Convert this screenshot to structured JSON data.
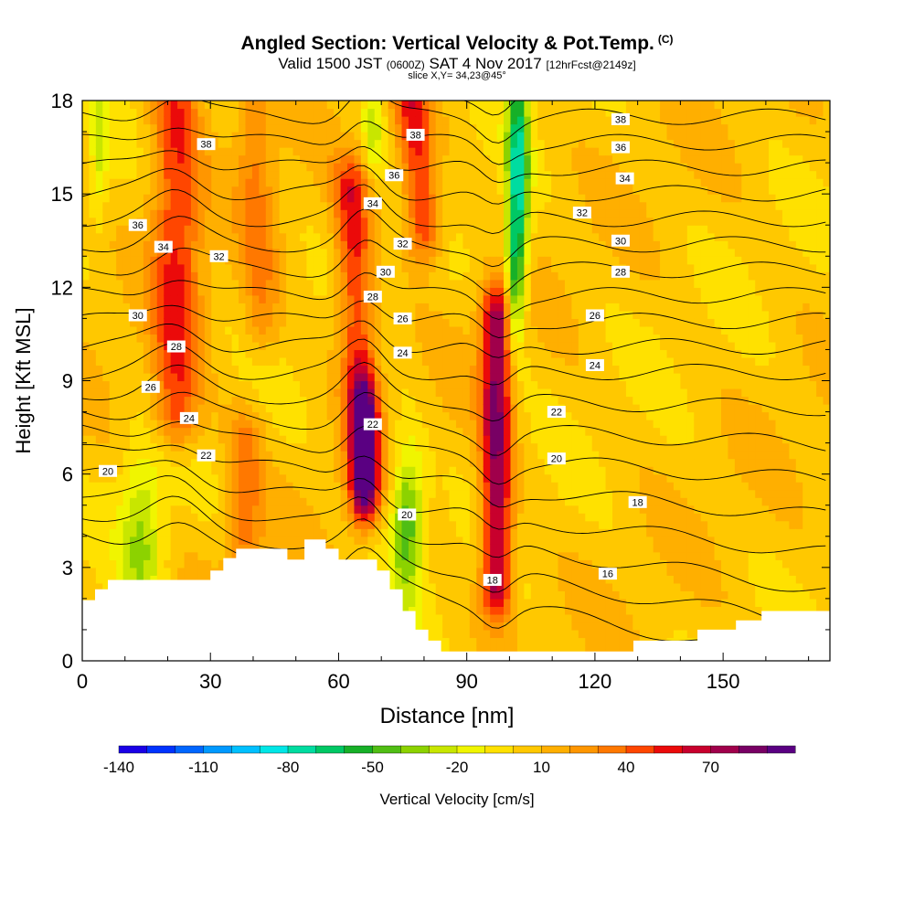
{
  "header": {
    "title": "Angled Section: Vertical Velocity & Pot.Temp.",
    "title_mark": "(C)",
    "valid_prefix": "Valid 1500 JST",
    "valid_utc": "(0600Z)",
    "valid_date": "SAT 4 Nov 2017",
    "forecast": "[12hrFcst@2149z]",
    "slice": "slice X,Y= 34,23@45°"
  },
  "chart_data": {
    "type": "heatmap",
    "title": "Angled Section: Vertical Velocity & Pot.Temp.",
    "xlabel": "Distance [nm]",
    "ylabel": "Height [Kft MSL]",
    "xlim": [
      0,
      175
    ],
    "ylim": [
      0,
      18
    ],
    "x_ticks": [
      0,
      30,
      60,
      90,
      120,
      150
    ],
    "y_ticks": [
      0,
      3,
      6,
      9,
      12,
      15,
      18
    ],
    "grid": false,
    "colorbar": {
      "label": "Vertical Velocity [cm/s]",
      "placement": "bottom",
      "levels": [
        -140,
        -130,
        -120,
        -110,
        -100,
        -90,
        -80,
        -70,
        -60,
        -50,
        -40,
        -30,
        -20,
        -10,
        0,
        10,
        20,
        30,
        40,
        50,
        60,
        70,
        80,
        90
      ],
      "tick_labels": [
        "-140",
        "-110",
        "-80",
        "-50",
        "-20",
        "10",
        "40",
        "70"
      ],
      "colors": [
        "#1a00e6",
        "#0033ff",
        "#0066ff",
        "#0099ff",
        "#00c0ff",
        "#00e6e6",
        "#00dca0",
        "#00c864",
        "#17b028",
        "#50be14",
        "#8cd200",
        "#c8e600",
        "#f0f500",
        "#ffe100",
        "#ffc800",
        "#ffaf00",
        "#ff9600",
        "#ff7800",
        "#ff4600",
        "#eb0a0a",
        "#c8002d",
        "#a0004b",
        "#780064",
        "#5a0082"
      ]
    },
    "background_velocity": 5,
    "updraft_plumes": [
      {
        "x_base": 22,
        "x_top": 22,
        "y_base": 8,
        "y_top": 18,
        "width": 4,
        "peak": 45
      },
      {
        "x_base": 66,
        "x_top": 63,
        "y_base": 6,
        "y_top": 15,
        "width": 3,
        "peak": 50
      },
      {
        "x_base": 66,
        "x_top": 66,
        "y_base": 5.5,
        "y_top": 8,
        "width": 2,
        "peak": 65
      },
      {
        "x_base": 97,
        "x_top": 97,
        "y_base": 2.5,
        "y_top": 11,
        "width": 2.5,
        "peak": 75
      },
      {
        "x_base": 80,
        "x_top": 77,
        "y_base": 14,
        "y_top": 18,
        "width": 3,
        "peak": 50
      },
      {
        "x_base": 42,
        "x_top": 40,
        "y_base": 11,
        "y_top": 18,
        "width": 3,
        "peak": 25
      },
      {
        "x_base": 38,
        "x_top": 38,
        "y_base": 4,
        "y_top": 7,
        "width": 3,
        "peak": 30
      }
    ],
    "downdraft_regions": [
      {
        "x": 14,
        "y": 4,
        "rx": 5,
        "ry": 3,
        "peak": -35
      },
      {
        "x": 76,
        "y": 4.5,
        "rx": 4,
        "ry": 2.5,
        "peak": -55
      },
      {
        "x": 102,
        "y": 15.5,
        "rx": 2.5,
        "ry": 4,
        "peak": -80
      },
      {
        "x": 101,
        "y": 12,
        "rx": 2,
        "ry": 2,
        "peak": -35
      },
      {
        "x": 68,
        "y": 17,
        "rx": 2.5,
        "ry": 1.5,
        "peak": -30
      },
      {
        "x": 4,
        "y": 16.5,
        "rx": 2,
        "ry": 2.5,
        "peak": -25
      }
    ],
    "theta_contour_values": [
      16,
      17,
      18,
      19,
      20,
      21,
      22,
      23,
      24,
      25,
      26,
      27,
      28,
      29,
      30,
      31,
      32,
      33,
      34,
      35,
      36,
      37,
      38,
      39,
      40
    ],
    "theta_labels": [
      {
        "text": "36",
        "x": 13,
        "y": 14.0
      },
      {
        "text": "34",
        "x": 19,
        "y": 13.3
      },
      {
        "text": "32",
        "x": 32,
        "y": 13.0
      },
      {
        "text": "30",
        "x": 13,
        "y": 11.1
      },
      {
        "text": "28",
        "x": 22,
        "y": 10.1
      },
      {
        "text": "26",
        "x": 16,
        "y": 8.8
      },
      {
        "text": "24",
        "x": 25,
        "y": 7.8
      },
      {
        "text": "22",
        "x": 29,
        "y": 6.6
      },
      {
        "text": "20",
        "x": 6,
        "y": 6.1
      },
      {
        "text": "38",
        "x": 29,
        "y": 16.6
      },
      {
        "text": "36",
        "x": 73,
        "y": 15.6
      },
      {
        "text": "34",
        "x": 68,
        "y": 14.7
      },
      {
        "text": "32",
        "x": 75,
        "y": 13.4
      },
      {
        "text": "30",
        "x": 71,
        "y": 12.5
      },
      {
        "text": "28",
        "x": 68,
        "y": 11.7
      },
      {
        "text": "26",
        "x": 75,
        "y": 11.0
      },
      {
        "text": "24",
        "x": 75,
        "y": 9.9
      },
      {
        "text": "22",
        "x": 68,
        "y": 7.6
      },
      {
        "text": "20",
        "x": 76,
        "y": 4.7
      },
      {
        "text": "38",
        "x": 78,
        "y": 16.9
      },
      {
        "text": "18",
        "x": 96,
        "y": 2.6
      },
      {
        "text": "38",
        "x": 126,
        "y": 17.4
      },
      {
        "text": "36",
        "x": 126,
        "y": 16.5
      },
      {
        "text": "34",
        "x": 127,
        "y": 15.5
      },
      {
        "text": "32",
        "x": 117,
        "y": 14.4
      },
      {
        "text": "30",
        "x": 126,
        "y": 13.5
      },
      {
        "text": "28",
        "x": 126,
        "y": 12.5
      },
      {
        "text": "26",
        "x": 120,
        "y": 11.1
      },
      {
        "text": "24",
        "x": 120,
        "y": 9.5
      },
      {
        "text": "22",
        "x": 111,
        "y": 8.0
      },
      {
        "text": "20",
        "x": 111,
        "y": 6.5
      },
      {
        "text": "18",
        "x": 130,
        "y": 5.1
      },
      {
        "text": "16",
        "x": 123,
        "y": 2.8
      }
    ],
    "terrain": [
      [
        0,
        1.95
      ],
      [
        3,
        1.95
      ],
      [
        3,
        2.3
      ],
      [
        6,
        2.3
      ],
      [
        6,
        2.6
      ],
      [
        9,
        2.6
      ],
      [
        9,
        2.6
      ],
      [
        30,
        2.6
      ],
      [
        30,
        2.9
      ],
      [
        33,
        2.9
      ],
      [
        33,
        3.3
      ],
      [
        36,
        3.3
      ],
      [
        36,
        3.6
      ],
      [
        48,
        3.6
      ],
      [
        48,
        3.25
      ],
      [
        52,
        3.25
      ],
      [
        52,
        3.9
      ],
      [
        57,
        3.9
      ],
      [
        57,
        3.6
      ],
      [
        60,
        3.6
      ],
      [
        60,
        3.25
      ],
      [
        69,
        3.25
      ],
      [
        69,
        2.9
      ],
      [
        72,
        2.9
      ],
      [
        72,
        2.3
      ],
      [
        75,
        2.3
      ],
      [
        75,
        1.6
      ],
      [
        78,
        1.6
      ],
      [
        78,
        1.0
      ],
      [
        81,
        1.0
      ],
      [
        81,
        0.65
      ],
      [
        84,
        0.65
      ],
      [
        84,
        0.3
      ],
      [
        87,
        0.3
      ],
      [
        87,
        0.3
      ],
      [
        129,
        0.3
      ],
      [
        129,
        0.65
      ],
      [
        144,
        0.65
      ],
      [
        144,
        1.0
      ],
      [
        153,
        1.0
      ],
      [
        153,
        1.3
      ],
      [
        159,
        1.3
      ],
      [
        159,
        1.6
      ],
      [
        175,
        1.6
      ]
    ]
  }
}
